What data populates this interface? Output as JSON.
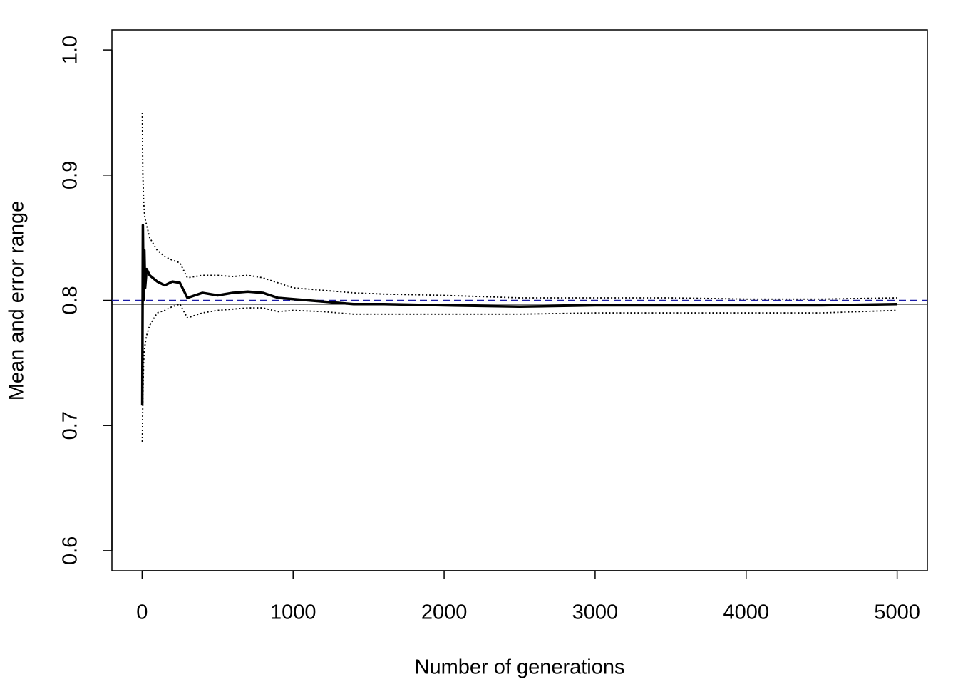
{
  "chart_data": {
    "type": "line",
    "x_label": "Number of generations",
    "y_label": "Mean and error range",
    "x": [
      1,
      5,
      10,
      15,
      20,
      30,
      50,
      100,
      150,
      200,
      250,
      300,
      400,
      500,
      600,
      700,
      800,
      900,
      1000,
      1200,
      1400,
      1600,
      2000,
      2500,
      3000,
      3500,
      4000,
      4500,
      5000
    ],
    "series": [
      {
        "color": "#000000",
        "style": "solid",
        "values": [
          0.716,
          0.86,
          0.8,
          0.84,
          0.81,
          0.825,
          0.82,
          0.815,
          0.812,
          0.815,
          0.814,
          0.802,
          0.806,
          0.804,
          0.806,
          0.807,
          0.806,
          0.802,
          0.801,
          0.799,
          0.797,
          0.797,
          0.796,
          0.795,
          0.796,
          0.796,
          0.796,
          0.796,
          0.797
        ]
      },
      {
        "color": "#000000",
        "style": "dotted",
        "values": [
          0.95,
          0.9,
          0.88,
          0.87,
          0.865,
          0.86,
          0.85,
          0.84,
          0.835,
          0.832,
          0.83,
          0.818,
          0.82,
          0.82,
          0.819,
          0.82,
          0.818,
          0.814,
          0.81,
          0.808,
          0.806,
          0.805,
          0.804,
          0.802,
          0.802,
          0.802,
          0.801,
          0.801,
          0.802
        ]
      },
      {
        "color": "#000000",
        "style": "dotted",
        "values": [
          0.687,
          0.72,
          0.75,
          0.76,
          0.765,
          0.772,
          0.78,
          0.79,
          0.792,
          0.795,
          0.797,
          0.786,
          0.79,
          0.792,
          0.793,
          0.794,
          0.794,
          0.791,
          0.792,
          0.791,
          0.789,
          0.789,
          0.789,
          0.789,
          0.79,
          0.79,
          0.79,
          0.79,
          0.792
        ]
      }
    ],
    "reference_lines": [
      {
        "value": 0.797,
        "color": "#000000",
        "style": "solid"
      },
      {
        "value": 0.8,
        "color": "#1a1aa6",
        "style": "dashed"
      }
    ],
    "xlim": [
      -200,
      5200
    ],
    "ylim": [
      0.584,
      1.016
    ],
    "xticks": [
      0,
      1000,
      2000,
      3000,
      4000,
      5000
    ],
    "yticks": [
      0.6,
      0.7,
      0.8,
      0.9,
      {
        "value": 1.0,
        "label": "1.0"
      }
    ]
  }
}
